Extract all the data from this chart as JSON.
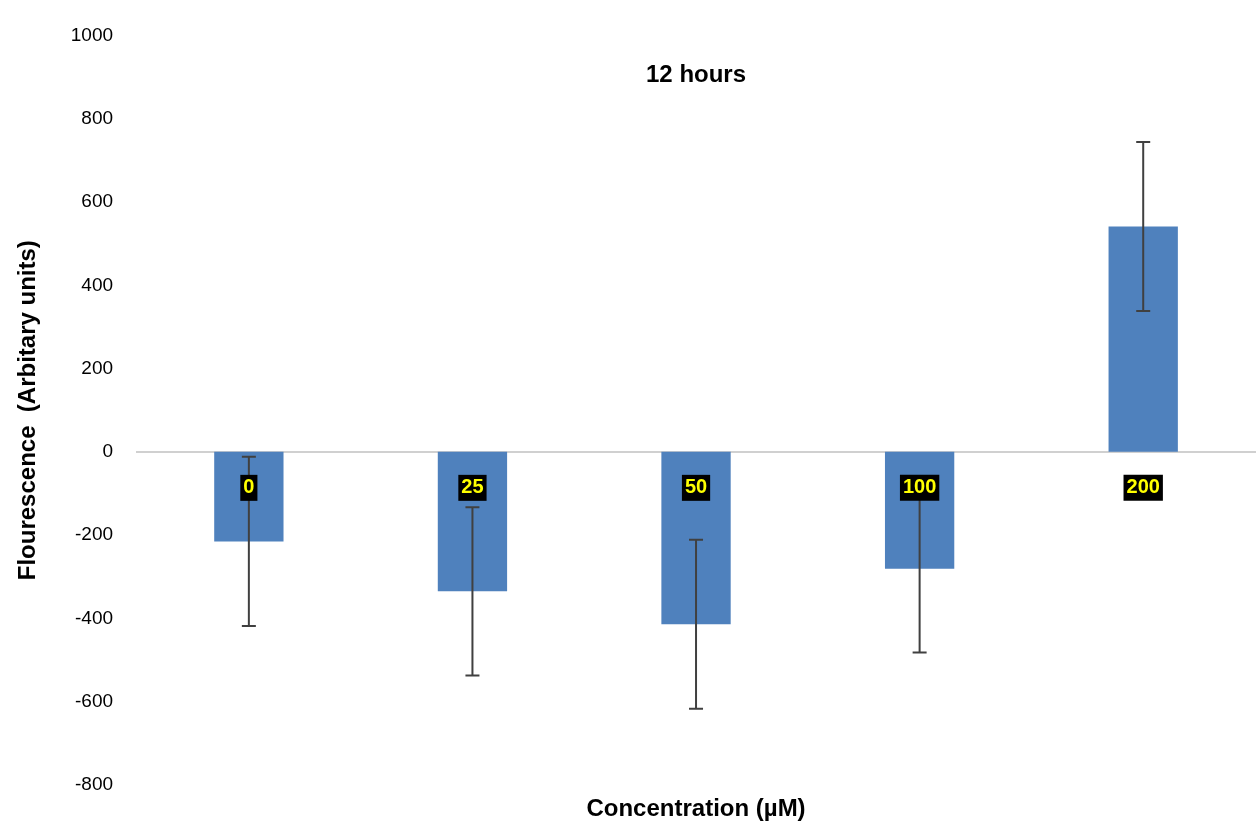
{
  "chart_data": {
    "type": "bar",
    "title": "12 hours",
    "xlabel": "Concentration (µM)",
    "ylabel": "Flourescence  (Arbitary units)",
    "categories": [
      "0",
      "25",
      "50",
      "100",
      "200"
    ],
    "values": [
      -215,
      -335,
      -414,
      -281,
      541
    ],
    "errors": [
      203,
      202,
      203,
      201,
      203
    ],
    "color": "#4f81bd",
    "ylim": [
      -800,
      1000
    ],
    "yticks": [
      -800,
      -600,
      -400,
      -200,
      0,
      200,
      400,
      600,
      800,
      1000
    ],
    "grid": false,
    "legend": false
  }
}
